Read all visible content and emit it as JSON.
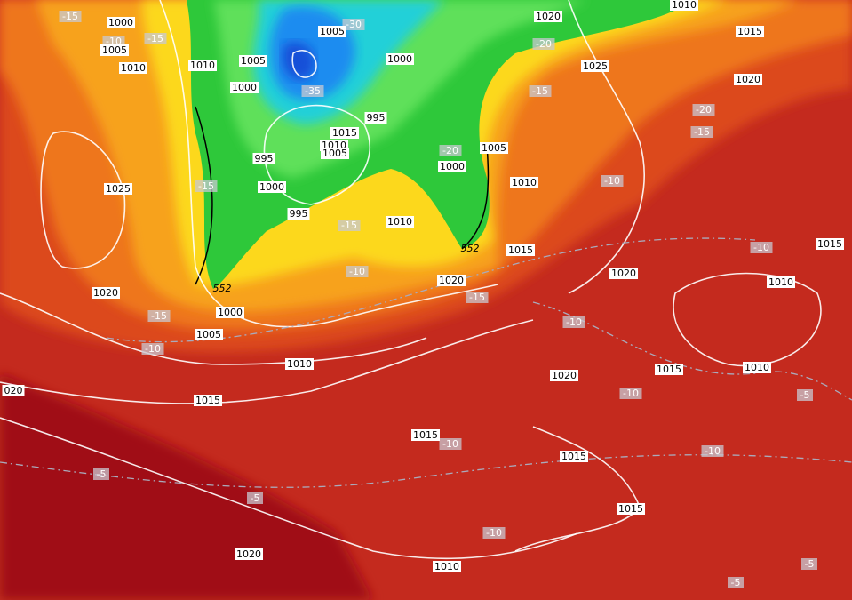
{
  "isobar_labels": [
    "1000",
    "1005",
    "1010",
    "1010",
    "1005",
    "1000",
    "1005",
    "1000",
    "995",
    "1015",
    "1010",
    "1005",
    "995",
    "1000",
    "995",
    "1000",
    "1005",
    "1010",
    "1010",
    "1015",
    "1020",
    "1020",
    "1010",
    "1015",
    "1025",
    "1020",
    "1025",
    "1020",
    "1000",
    "1005",
    "1010",
    "1015",
    "1020",
    "1010",
    "1015",
    "1015",
    "1010",
    "1020",
    "1015",
    "1015",
    "1015",
    "1020",
    "1010",
    "020"
  ],
  "temperature_labels": [
    "-15",
    "-10",
    "-15",
    "-30",
    "-35",
    "-20",
    "-15",
    "-20",
    "-15",
    "-20",
    "-15",
    "-15",
    "-10",
    "-10",
    "-10",
    "-15",
    "-15",
    "-10",
    "-10",
    "-10",
    "-5",
    "-10",
    "-10",
    "-5",
    "-5",
    "-10",
    "-5",
    "-5"
  ],
  "thickness_labels": [
    "552",
    "552"
  ]
}
